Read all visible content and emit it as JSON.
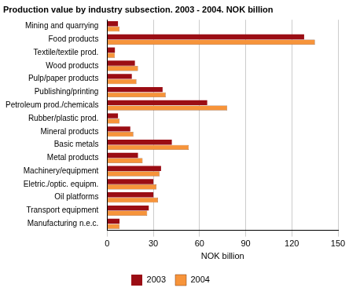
{
  "chart_data": {
    "type": "bar",
    "orientation": "horizontal",
    "title": "Production value by industry subsection. 2003 - 2004. NOK billion",
    "x_label": "NOK billion",
    "categories": [
      "Mining and quarrying",
      "Food products",
      "Textile/textile prod.",
      "Wood products",
      "Pulp/paper products",
      "Publishing/printing",
      "Petroleum prod./chemicals",
      "Rubber/plastic prod.",
      "Mineral products",
      "Basic metals",
      "Metal products",
      "Machinery/equipment",
      "Eletric./optic. equipm.",
      "Oil platforms",
      "Transport equipment",
      "Manufacturing n.e.c."
    ],
    "series": [
      {
        "name": "2003",
        "color": "#9b0d14",
        "values": [
          7,
          128,
          5,
          18,
          16,
          36,
          65,
          7,
          15,
          42,
          20,
          35,
          30,
          30,
          27,
          8
        ]
      },
      {
        "name": "2004",
        "color": "#f7943a",
        "values": [
          8,
          135,
          5,
          20,
          19,
          38,
          78,
          8,
          17,
          53,
          23,
          34,
          32,
          33,
          26,
          8
        ]
      }
    ],
    "xlim": [
      0,
      150
    ],
    "xticks": [
      0,
      30,
      60,
      90,
      120,
      150
    ],
    "grid": true,
    "legend": "bottom"
  }
}
